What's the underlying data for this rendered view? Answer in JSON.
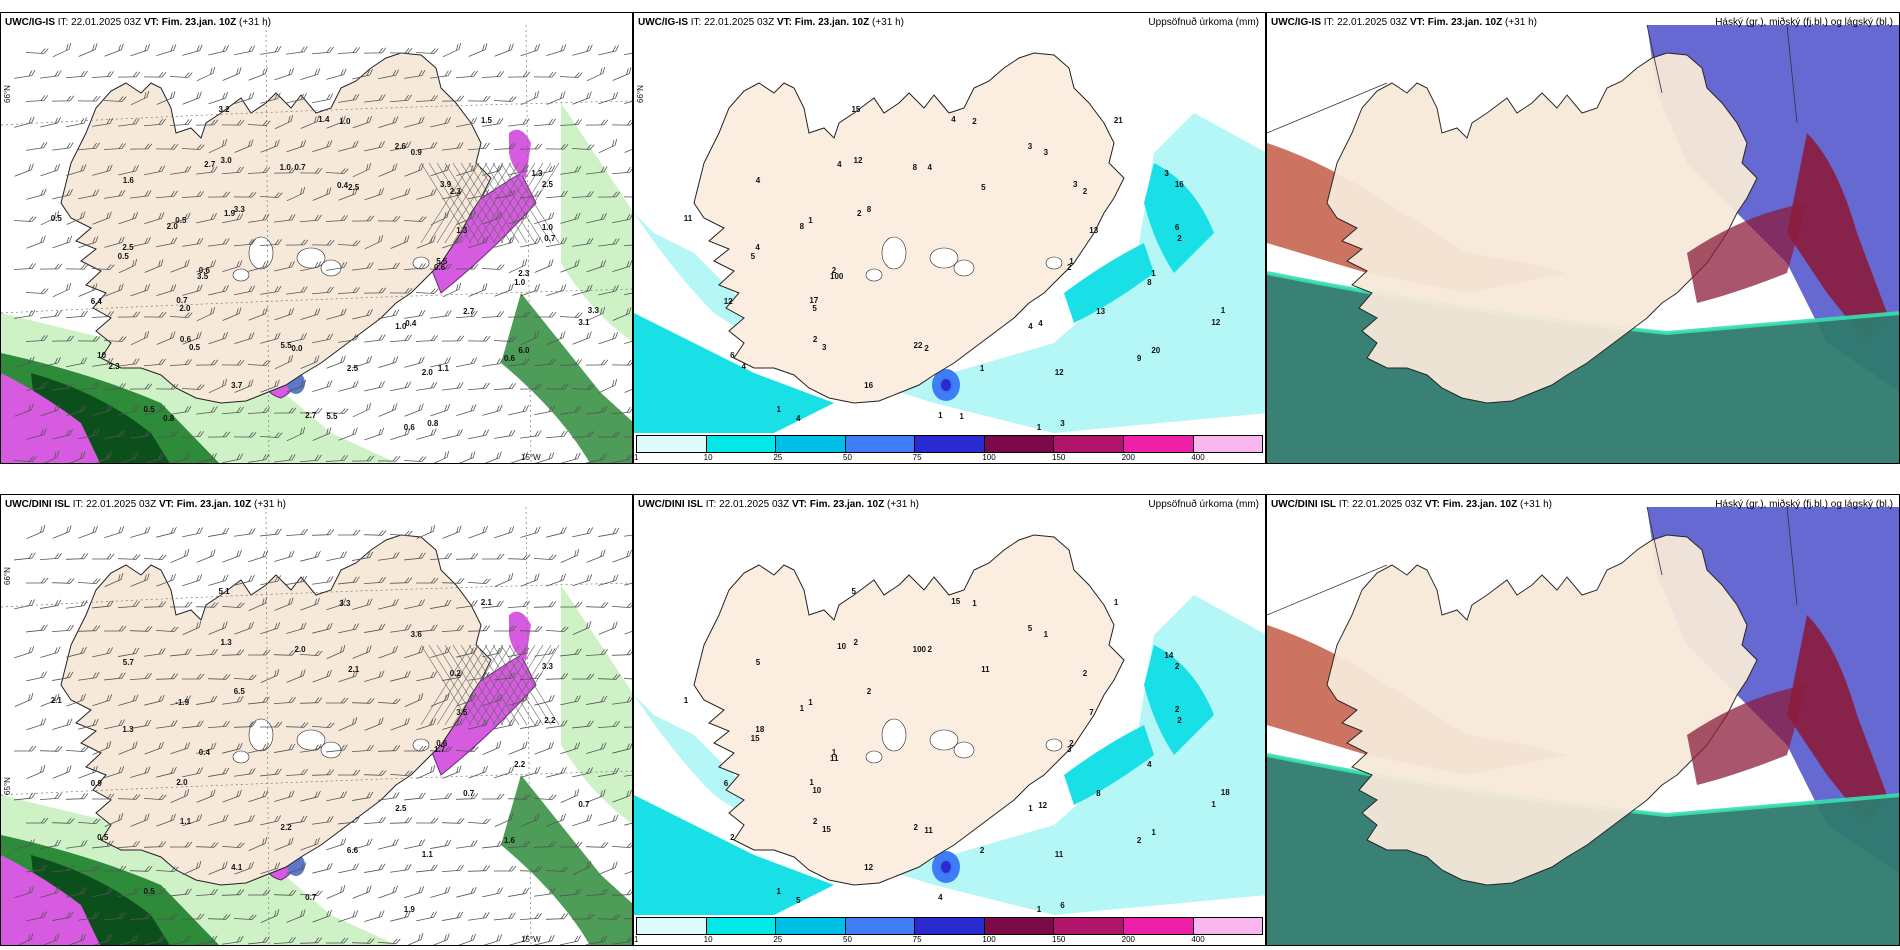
{
  "panels": [
    {
      "model": "UWC/IG-IS",
      "it": "IT: 22.01.2025 03Z",
      "vt_label": "VT:",
      "vt": "Fim. 23.jan. 10Z",
      "lead": "(+31 h)",
      "right_title": "",
      "kind": "wind-precip",
      "axis_labels": [
        "66°N",
        "15°W"
      ],
      "values": [
        "0.6",
        "0.6",
        "1.0",
        "1.0",
        "2.5",
        "2.5",
        "5.5",
        "3.0",
        "3.1",
        "0.7",
        "0.9",
        "0.6",
        "0.5",
        "0.7",
        "0.5",
        "0.7",
        "0.6",
        "0.6",
        "2.3",
        "2.7",
        "3.3",
        "1.0",
        "10",
        "2.5",
        "2.0",
        "0.5",
        "1.3",
        "3.7",
        "3.2",
        "2.7",
        "6.4",
        "1.5",
        "2.5",
        "1.6",
        "5.5",
        "0.5",
        "1.4",
        "0.4",
        "0.5",
        "1.3",
        "0.0",
        "2.7",
        "3.3",
        "2.0",
        "2.6",
        "0.8",
        "2.0",
        "1.0",
        "0.8",
        "1.0",
        "6.0",
        "3.5",
        "3.9",
        "5.5",
        "1.9",
        "2.3",
        "2.3",
        "0.4",
        "1.1"
      ]
    },
    {
      "model": "UWC/IG-IS",
      "it": "IT: 22.01.2025 03Z",
      "vt_label": "VT:",
      "vt": "Fim. 23.jan. 10Z",
      "lead": "(+31 h)",
      "right_title": "Uppsöfnuð úrkoma (mm)",
      "kind": "accum",
      "axis_labels": [
        "66°N"
      ],
      "values": [
        "2",
        "2",
        "2",
        "4",
        "4",
        "16",
        "22",
        "12",
        "12",
        "17",
        "3",
        "1",
        "1",
        "2",
        "1",
        "4",
        "9",
        "2",
        "2",
        "1",
        "8",
        "8",
        "6",
        "5",
        "12",
        "11",
        "13",
        "16",
        "15",
        "13",
        "12",
        "21",
        "1",
        "4",
        "1",
        "3",
        "4",
        "4",
        "5",
        "3",
        "2",
        "4",
        "1",
        "5",
        "3",
        "3",
        "8",
        "6",
        "4",
        "8",
        "20",
        "100",
        "3",
        "1",
        "2",
        "1",
        "4"
      ],
      "colorbar": {
        "colors": [
          "#dffcfd",
          "#00e8e8",
          "#00bfe6",
          "#3d7df5",
          "#2a2ad1",
          "#7d0a48",
          "#b0156b",
          "#ee20a8",
          "#f9b7f0"
        ],
        "ticks": [
          "1",
          "10",
          "25",
          "50",
          "75",
          "100",
          "150",
          "200",
          "400"
        ]
      }
    },
    {
      "model": "UWC/IG-IS",
      "it": "IT: 22.01.2025 03Z",
      "vt_label": "VT:",
      "vt": "Fim. 23.jan. 10Z",
      "lead": "(+31 h)",
      "right_title": "Háský (gr.), miðský (fj.bl.) og lágský (bl.)",
      "kind": "clouds",
      "axis_labels": [],
      "values": []
    },
    {
      "model": "UWC/DINI ISL",
      "it": "IT: 22.01.2025 03Z",
      "vt_label": "VT:",
      "vt": "Fim. 23.jan. 10Z",
      "lead": "(+31 h)",
      "right_title": "",
      "kind": "wind-precip",
      "axis_labels": [
        "66°N",
        "65°N",
        "15°W"
      ],
      "values": [
        "1.7",
        "1.1",
        "3.3",
        "2.5",
        "1.3",
        "3.3",
        "2.2",
        "1.3",
        "0.7",
        "2.0",
        "3.6",
        "1.9",
        "-1.9",
        "2.2",
        "0.5",
        "2.0",
        "1.6",
        "0.4",
        "0.2",
        "0.7",
        "6.5",
        "2.2",
        "0.5",
        "2.1",
        "1.1",
        "2.1",
        "3.5",
        "4.1",
        "5.1",
        "0.7",
        "0.9",
        "2.1",
        "6.6",
        "5.7",
        "0.6"
      ]
    },
    {
      "model": "UWC/DINI ISL",
      "it": "IT: 22.01.2025 03Z",
      "vt_label": "VT:",
      "vt": "Fim. 23.jan. 10Z",
      "lead": "(+31 h)",
      "right_title": "Uppsöfnuð úrkoma (mm)",
      "kind": "accum",
      "axis_labels": [],
      "values": [
        "3",
        "2",
        "1",
        "1",
        "18",
        "2",
        "2",
        "2",
        "1",
        "1",
        "1",
        "1",
        "1",
        "2",
        "1",
        "2",
        "2",
        "1",
        "2",
        "4",
        "2",
        "4",
        "2",
        "11",
        "11",
        "1",
        "7",
        "12",
        "5",
        "8",
        "6",
        "1",
        "2",
        "5",
        "2",
        "15",
        "15",
        "12",
        "15",
        "14",
        "11",
        "10",
        "18",
        "10",
        "5",
        "6",
        "1",
        "2",
        "5",
        "100",
        "1",
        "11"
      ],
      "colorbar": {
        "colors": [
          "#dffcfd",
          "#00e8e8",
          "#00bfe6",
          "#3d7df5",
          "#2a2ad1",
          "#7d0a48",
          "#b0156b",
          "#ee20a8",
          "#f9b7f0"
        ],
        "ticks": [
          "1",
          "10",
          "25",
          "50",
          "75",
          "100",
          "150",
          "200",
          "400"
        ]
      }
    },
    {
      "model": "UWC/DINI ISL",
      "it": "IT: 22.01.2025 03Z",
      "vt_label": "VT:",
      "vt": "Fim. 23.jan. 10Z",
      "lead": "(+31 h)",
      "right_title": "Háský (gr.), miðský (fj.bl.) og lágský (bl.)",
      "kind": "clouds",
      "axis_labels": [],
      "values": []
    }
  ],
  "colors": {
    "land": "#f7e9da",
    "land_accum": "#fbeee0",
    "sea": "#ffffff",
    "precip_light": "#c9efc0",
    "precip_green": "#2e8b3a",
    "precip_dark": "#0b4f1b",
    "precip_purple": "#d65be0",
    "accum_light": "#b5f6f6",
    "accum_cyan": "#19e0e6",
    "cloud_high": "#8b1c3c",
    "cloud_mid": "#4b4fc9",
    "cloud_low": "#2f7a6e",
    "cloud_low_edge": "#36e0b0"
  }
}
